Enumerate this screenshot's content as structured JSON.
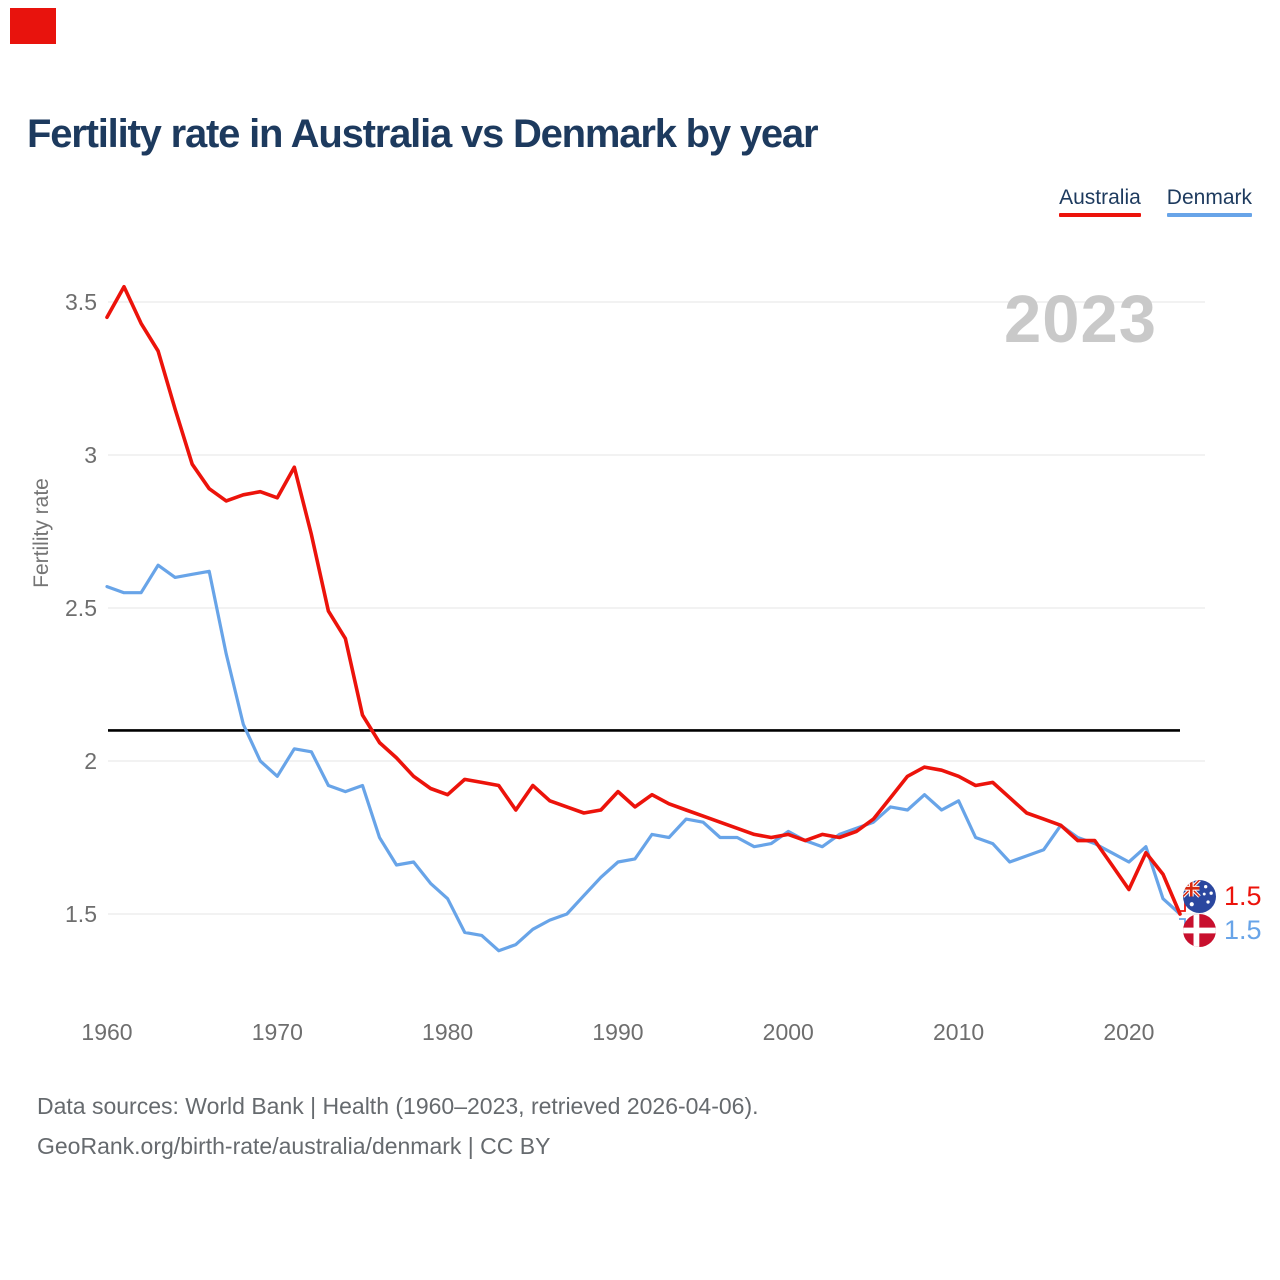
{
  "header": {
    "title": "Fertility rate in Australia vs Denmark by year"
  },
  "legend": {
    "items": [
      {
        "label": "Australia",
        "color": "#ec130b"
      },
      {
        "label": "Denmark",
        "color": "#68a4e8"
      }
    ]
  },
  "watermark": {
    "text": "2023"
  },
  "axes": {
    "y_label": "Fertility rate"
  },
  "annotation": {
    "marker_color": "#e8130d"
  },
  "end_labels": {
    "australia": {
      "value": "1.5",
      "color": "#ec130b",
      "flag": "australia-flag"
    },
    "denmark": {
      "value": "1.5",
      "color": "#68a4e8",
      "flag": "denmark-flag"
    }
  },
  "footer": {
    "line1": "Data sources: World Bank | Health (1960–2023, retrieved 2026-04-06).",
    "line2": "GeoRank.org/birth-rate/australia/denmark | CC BY"
  },
  "chart_data": {
    "type": "line",
    "title": "Fertility rate in Australia vs Denmark by year",
    "xlabel": "",
    "ylabel": "Fertility rate",
    "x": [
      1960,
      1961,
      1962,
      1963,
      1964,
      1965,
      1966,
      1967,
      1968,
      1969,
      1970,
      1971,
      1972,
      1973,
      1974,
      1975,
      1976,
      1977,
      1978,
      1979,
      1980,
      1981,
      1982,
      1983,
      1984,
      1985,
      1986,
      1987,
      1988,
      1989,
      1990,
      1991,
      1992,
      1993,
      1994,
      1995,
      1996,
      1997,
      1998,
      1999,
      2000,
      2001,
      2002,
      2003,
      2004,
      2005,
      2006,
      2007,
      2008,
      2009,
      2010,
      2011,
      2012,
      2013,
      2014,
      2015,
      2016,
      2017,
      2018,
      2019,
      2020,
      2021,
      2022,
      2023
    ],
    "series": [
      {
        "name": "Australia",
        "color": "#ec130b",
        "values": [
          3.45,
          3.55,
          3.43,
          3.34,
          3.15,
          2.97,
          2.89,
          2.85,
          2.87,
          2.88,
          2.86,
          2.96,
          2.74,
          2.49,
          2.4,
          2.15,
          2.06,
          2.01,
          1.95,
          1.91,
          1.89,
          1.94,
          1.93,
          1.92,
          1.84,
          1.92,
          1.87,
          1.85,
          1.83,
          1.84,
          1.9,
          1.85,
          1.89,
          1.86,
          1.84,
          1.82,
          1.8,
          1.78,
          1.76,
          1.75,
          1.76,
          1.74,
          1.76,
          1.75,
          1.77,
          1.81,
          1.88,
          1.95,
          1.98,
          1.97,
          1.95,
          1.92,
          1.93,
          1.88,
          1.83,
          1.81,
          1.79,
          1.74,
          1.74,
          1.66,
          1.58,
          1.7,
          1.63,
          1.5
        ]
      },
      {
        "name": "Denmark",
        "color": "#68a4e8",
        "values": [
          2.57,
          2.55,
          2.55,
          2.64,
          2.6,
          2.61,
          2.62,
          2.35,
          2.12,
          2.0,
          1.95,
          2.04,
          2.03,
          1.92,
          1.9,
          1.92,
          1.75,
          1.66,
          1.67,
          1.6,
          1.55,
          1.44,
          1.43,
          1.38,
          1.4,
          1.45,
          1.48,
          1.5,
          1.56,
          1.62,
          1.67,
          1.68,
          1.76,
          1.75,
          1.81,
          1.8,
          1.75,
          1.75,
          1.72,
          1.73,
          1.77,
          1.74,
          1.72,
          1.76,
          1.78,
          1.8,
          1.85,
          1.84,
          1.89,
          1.84,
          1.87,
          1.75,
          1.73,
          1.67,
          1.69,
          1.71,
          1.79,
          1.75,
          1.73,
          1.7,
          1.67,
          1.72,
          1.55,
          1.5
        ]
      }
    ],
    "yticks": [
      1.5,
      2,
      2.5,
      3,
      3.5
    ],
    "xticks": [
      1960,
      1970,
      1980,
      1990,
      2000,
      2010,
      2020
    ],
    "ref_line": 2.1,
    "ylim": [
      1.3,
      3.6
    ],
    "xlim": [
      1960,
      2023
    ],
    "grid": true,
    "legend_position": "top-right",
    "end_values": {
      "Australia": 1.5,
      "Denmark": 1.5
    },
    "watermark": "2023"
  }
}
